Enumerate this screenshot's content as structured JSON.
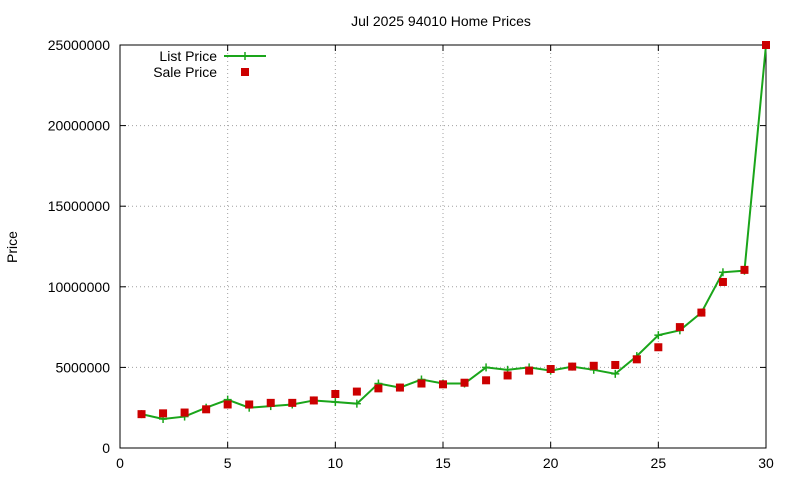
{
  "chart_data": {
    "type": "line",
    "title": "Jul 2025 94010 Home Prices",
    "xlabel": "",
    "ylabel": "Price",
    "xlim": [
      0,
      30
    ],
    "ylim": [
      0,
      25000000
    ],
    "xticks": [
      0,
      5,
      10,
      15,
      20,
      25,
      30
    ],
    "yticks": [
      0,
      5000000,
      10000000,
      15000000,
      20000000,
      25000000
    ],
    "xtick_labels": [
      "0",
      "5",
      "10",
      "15",
      "20",
      "25",
      "30"
    ],
    "ytick_labels": [
      "0",
      "5000000",
      "10000000",
      "15000000",
      "20000000",
      "25000000"
    ],
    "grid": true,
    "legend_position": "top-left",
    "series": [
      {
        "name": "List Price",
        "style": "line+cross",
        "color": "#1aa51a",
        "x": [
          1,
          2,
          3,
          4,
          5,
          6,
          7,
          8,
          9,
          10,
          11,
          12,
          13,
          14,
          15,
          16,
          17,
          18,
          19,
          20,
          21,
          22,
          23,
          24,
          25,
          26,
          27,
          28,
          29,
          30
        ],
        "values": [
          2100000,
          1800000,
          1950000,
          2500000,
          3000000,
          2500000,
          2600000,
          2700000,
          2950000,
          2850000,
          2750000,
          4000000,
          3750000,
          4250000,
          4000000,
          4000000,
          5000000,
          4850000,
          5000000,
          4800000,
          5050000,
          4850000,
          4600000,
          5700000,
          7000000,
          7300000,
          8400000,
          10900000,
          11000000,
          25000000
        ]
      },
      {
        "name": "Sale Price",
        "style": "square",
        "color": "#cc0000",
        "x": [
          1,
          2,
          3,
          4,
          5,
          6,
          7,
          8,
          9,
          10,
          11,
          12,
          13,
          14,
          15,
          16,
          17,
          18,
          19,
          20,
          21,
          22,
          23,
          24,
          25,
          26,
          27,
          28,
          29,
          30
        ],
        "values": [
          2100000,
          2150000,
          2200000,
          2400000,
          2700000,
          2700000,
          2800000,
          2800000,
          2950000,
          3350000,
          3500000,
          3700000,
          3750000,
          4000000,
          3950000,
          4050000,
          4200000,
          4500000,
          4800000,
          4900000,
          5050000,
          5100000,
          5150000,
          5500000,
          6250000,
          7500000,
          8400000,
          10300000,
          11050000,
          25000000
        ]
      }
    ]
  }
}
